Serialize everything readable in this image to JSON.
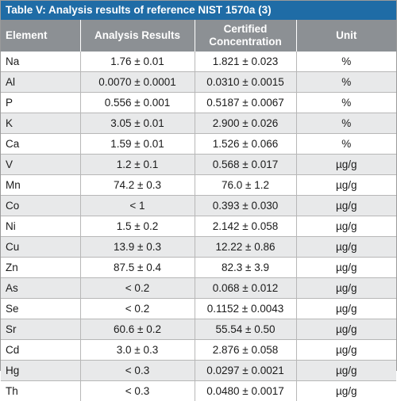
{
  "table": {
    "title": "Table V: Analysis results of reference NIST 1570a (3)",
    "headers": {
      "element": "Element",
      "analysis": "Analysis Results",
      "certified_line1": "Certified",
      "certified_line2": "Concentration",
      "unit": "Unit"
    },
    "rows": [
      {
        "element": "Na",
        "analysis": "1.76 ± 0.01",
        "certified": "1.821 ± 0.023",
        "unit": "%"
      },
      {
        "element": "Al",
        "analysis": "0.0070 ± 0.0001",
        "certified": "0.0310 ± 0.0015",
        "unit": "%"
      },
      {
        "element": "P",
        "analysis": "0.556 ± 0.001",
        "certified": "0.5187 ± 0.0067",
        "unit": "%"
      },
      {
        "element": "K",
        "analysis": "3.05 ± 0.01",
        "certified": "2.900 ± 0.026",
        "unit": "%"
      },
      {
        "element": "Ca",
        "analysis": "1.59 ± 0.01",
        "certified": "1.526 ± 0.066",
        "unit": "%"
      },
      {
        "element": "V",
        "analysis": "1.2 ± 0.1",
        "certified": "0.568 ± 0.017",
        "unit": "µg/g"
      },
      {
        "element": "Mn",
        "analysis": "74.2 ± 0.3",
        "certified": "76.0 ± 1.2",
        "unit": "µg/g"
      },
      {
        "element": "Co",
        "analysis": "< 1",
        "certified": "0.393 ± 0.030",
        "unit": "µg/g"
      },
      {
        "element": "Ni",
        "analysis": "1.5 ± 0.2",
        "certified": "2.142 ± 0.058",
        "unit": "µg/g"
      },
      {
        "element": "Cu",
        "analysis": "13.9 ± 0.3",
        "certified": "12.22 ± 0.86",
        "unit": "µg/g"
      },
      {
        "element": "Zn",
        "analysis": "87.5 ± 0.4",
        "certified": "82.3 ± 3.9",
        "unit": "µg/g"
      },
      {
        "element": "As",
        "analysis": "< 0.2",
        "certified": "0.068 ± 0.012",
        "unit": "µg/g"
      },
      {
        "element": "Se",
        "analysis": "< 0.2",
        "certified": "0.1152 ± 0.0043",
        "unit": "µg/g"
      },
      {
        "element": "Sr",
        "analysis": "60.6 ± 0.2",
        "certified": "55.54 ± 0.50",
        "unit": "µg/g"
      },
      {
        "element": "Cd",
        "analysis": "3.0 ± 0.3",
        "certified": "2.876 ± 0.058",
        "unit": "µg/g"
      },
      {
        "element": "Hg",
        "analysis": "< 0.3",
        "certified": "0.0297 ± 0.0021",
        "unit": "µg/g"
      },
      {
        "element": "Th",
        "analysis": "< 0.3",
        "certified": "0.0480 ± 0.0017",
        "unit": "µg/g"
      }
    ]
  },
  "colors": {
    "title_bar": "#1f6ca6",
    "header_bg": "#8c9094",
    "stripe_bg": "#e8e9ea"
  }
}
